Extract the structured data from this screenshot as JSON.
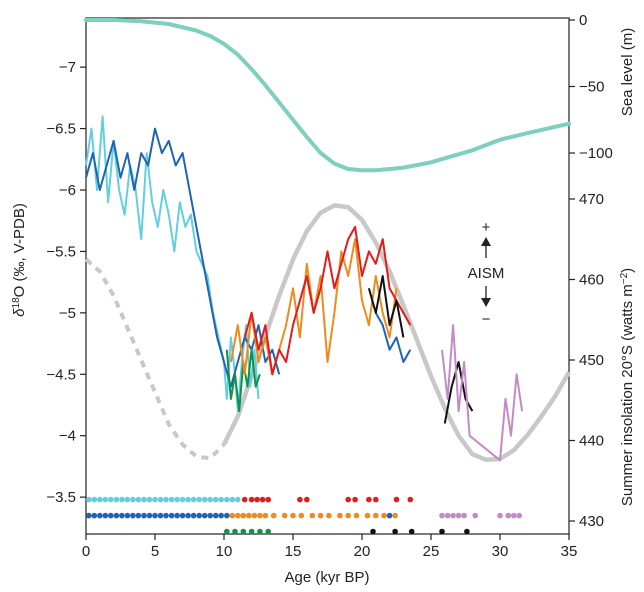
{
  "chart_data": {
    "type": "line",
    "xlabel": "Age (kyr BP)",
    "xlim": [
      0,
      35
    ],
    "x_ticks": [
      0,
      5,
      10,
      15,
      20,
      25,
      30,
      35
    ],
    "y_left": {
      "label_sup": "18",
      "label_rest": "O (‰, V-PDB)",
      "label_delta": "δ",
      "inverted": true,
      "lim": [
        -3.2,
        -7.4
      ],
      "ticks": [
        -7,
        -6.5,
        -6,
        -5.5,
        -5,
        -4.5,
        -4,
        -3.5
      ],
      "tick_labels": [
        "−7",
        "−6.5",
        "−6",
        "−5.5",
        "−5",
        "−4.5",
        "−4",
        "−3.5"
      ]
    },
    "y_right_top": {
      "label": "Sea level (m)",
      "ticks": [
        0,
        -50,
        -100
      ],
      "tick_labels": [
        "0",
        "−50",
        "−100"
      ]
    },
    "y_right_bottom": {
      "label_prefix": "Summer insolation 20°S (watts m",
      "label_sup": "−2",
      "label_suffix": ")",
      "ticks": [
        470,
        460,
        450,
        440,
        430
      ],
      "tick_labels": [
        "470",
        "460",
        "450",
        "440",
        "430"
      ]
    },
    "annotation": {
      "text": "AISM",
      "plus": "+",
      "minus": "−"
    },
    "colors": {
      "cyan": "#62cfe0",
      "blue": "#1f63b5",
      "green": "#119248",
      "orange": "#ef8a1f",
      "red": "#e41b1b",
      "black": "#111111",
      "purple": "#c48ac8",
      "sea_level": "#7dcfbf",
      "insolation": "#c8c8c8"
    },
    "sea_level_series": {
      "x": [
        0,
        2,
        4,
        6,
        8,
        9,
        10,
        11,
        12,
        13,
        14,
        15,
        16,
        17,
        18,
        19,
        20,
        21,
        22,
        23,
        24,
        25,
        26,
        27,
        28,
        29,
        30,
        32,
        35
      ],
      "y": [
        0,
        0,
        -1,
        -3,
        -8,
        -12,
        -18,
        -26,
        -37,
        -49,
        -62,
        -75,
        -88,
        -100,
        -108,
        -112,
        -113,
        -113,
        -112,
        -111,
        -109,
        -107,
        -104,
        -101,
        -98,
        -94,
        -90,
        -85,
        -78
      ]
    },
    "insolation_series": {
      "dashed_until": 10,
      "x": [
        0,
        1,
        2,
        3,
        4,
        5,
        6,
        7,
        8,
        9,
        10,
        11,
        12,
        13,
        14,
        15,
        16,
        17,
        18,
        19,
        20,
        21,
        22,
        23,
        24,
        25,
        26,
        27,
        28,
        29,
        30,
        31,
        32,
        33,
        34,
        35
      ],
      "y": [
        462.5,
        461,
        458,
        454,
        450,
        446,
        442,
        439.5,
        438,
        437.8,
        439.5,
        443,
        448,
        453,
        458,
        462.5,
        466,
        468.3,
        469.2,
        469,
        467.4,
        464.6,
        461,
        456.8,
        452.4,
        448,
        444,
        440.6,
        438.3,
        437.6,
        437.7,
        438.8,
        440.7,
        443,
        445.5,
        448.5
      ]
    },
    "series": [
      {
        "color": "cyan",
        "x": [
          0,
          0.4,
          0.8,
          1.2,
          1.6,
          2,
          2.4,
          2.8,
          3.2,
          3.6,
          4,
          4.4,
          4.8,
          5.2,
          5.6,
          6,
          6.4,
          6.8,
          7.2,
          7.6,
          8,
          8.4,
          8.8,
          9.2,
          9.6,
          10,
          10.2,
          10.5,
          10.8,
          11,
          11.3,
          11.6,
          11.9,
          12.2,
          12.5
        ],
        "y": [
          -6.2,
          -6.5,
          -6.0,
          -6.6,
          -5.9,
          -6.4,
          -6.0,
          -5.8,
          -6.2,
          -6.0,
          -5.6,
          -6.3,
          -5.9,
          -5.7,
          -6.0,
          -5.8,
          -5.5,
          -5.9,
          -5.7,
          -5.8,
          -5.5,
          -5.4,
          -5.3,
          -5.0,
          -4.8,
          -4.6,
          -4.3,
          -4.8,
          -4.5,
          -4.2,
          -4.6,
          -4.9,
          -4.4,
          -4.7,
          -4.3
        ]
      },
      {
        "color": "blue",
        "x": [
          0,
          0.5,
          1,
          1.5,
          2,
          2.5,
          3,
          3.5,
          4,
          4.5,
          5,
          5.5,
          6,
          6.5,
          7,
          7.5,
          8,
          8.5,
          9,
          9.5,
          10,
          10.5,
          11,
          11.5,
          12,
          12.5,
          13,
          13.5,
          14
        ],
        "y": [
          -6.1,
          -6.3,
          -6.0,
          -6.2,
          -6.4,
          -6.1,
          -6.3,
          -6.0,
          -6.3,
          -6.2,
          -6.5,
          -6.3,
          -6.4,
          -6.2,
          -6.3,
          -6.0,
          -5.7,
          -5.4,
          -5.1,
          -4.8,
          -4.6,
          -4.4,
          -4.6,
          -4.8,
          -4.7,
          -4.9,
          -4.6,
          -4.7,
          -4.5
        ]
      },
      {
        "color": "blue",
        "x": [
          21,
          21.5,
          22,
          22.5,
          23,
          23.5
        ],
        "y": [
          -5.0,
          -4.9,
          -4.7,
          -4.8,
          -4.6,
          -4.7
        ]
      },
      {
        "color": "green",
        "x": [
          10.2,
          10.5,
          10.8,
          11.1,
          11.4,
          11.7,
          12.0,
          12.3,
          12.6
        ],
        "y": [
          -4.7,
          -4.3,
          -4.5,
          -4.2,
          -4.6,
          -4.4,
          -4.7,
          -4.4,
          -4.5
        ]
      },
      {
        "color": "orange",
        "x": [
          10.5,
          11,
          11.5,
          12,
          12.5,
          13,
          13.5,
          14,
          14.5,
          15,
          15.5,
          16,
          16.5,
          17,
          17.5,
          18,
          18.5,
          19,
          19.5,
          20,
          20.5,
          21,
          21.5,
          22,
          22.5
        ],
        "y": [
          -4.6,
          -4.9,
          -4.5,
          -5.0,
          -4.6,
          -4.8,
          -4.5,
          -4.7,
          -4.9,
          -5.2,
          -4.8,
          -5.4,
          -5.0,
          -5.3,
          -4.6,
          -5.0,
          -5.5,
          -5.3,
          -5.6,
          -5.1,
          -4.9,
          -5.3,
          -5.0,
          -4.8,
          -5.2
        ]
      },
      {
        "color": "red",
        "x": [
          11.5,
          12,
          12.5,
          13,
          13.5,
          14,
          14.5,
          15,
          15.5,
          16,
          16.5,
          17,
          17.5,
          18,
          18.5,
          19,
          19.5,
          20,
          20.5,
          21,
          21.5,
          22,
          22.5,
          23,
          23.5
        ],
        "y": [
          -4.8,
          -5.0,
          -4.7,
          -4.9,
          -4.5,
          -4.7,
          -4.6,
          -4.9,
          -5.1,
          -5.3,
          -5.0,
          -5.2,
          -5.5,
          -5.2,
          -5.4,
          -5.6,
          -5.7,
          -5.3,
          -5.5,
          -5.4,
          -5.6,
          -5.2,
          -5.1,
          -5.0,
          -4.9
        ]
      },
      {
        "color": "black",
        "x": [
          20.5,
          21,
          21.5,
          22,
          22.5,
          23
        ],
        "y": [
          -5.2,
          -5.0,
          -5.3,
          -4.9,
          -5.1,
          -4.8
        ]
      },
      {
        "color": "black",
        "x": [
          26,
          26.5,
          27,
          27.5,
          28
        ],
        "y": [
          -4.1,
          -4.4,
          -4.6,
          -4.3,
          -4.2
        ]
      },
      {
        "color": "purple",
        "x": [
          25.8,
          26.2,
          26.6,
          27,
          27.4,
          27.8,
          30,
          30.4,
          30.8,
          31.2,
          31.6
        ],
        "y": [
          -4.7,
          -4.3,
          -4.9,
          -4.2,
          -4.6,
          -4.0,
          -3.8,
          -4.3,
          -4.0,
          -4.5,
          -4.2
        ]
      }
    ],
    "date_rows": [
      {
        "color": "cyan",
        "row": -3.48,
        "x": [
          0.2,
          0.6,
          1,
          1.4,
          1.8,
          2.2,
          2.6,
          3,
          3.4,
          3.8,
          4.2,
          4.6,
          5,
          5.4,
          5.8,
          6.2,
          6.6,
          7,
          7.4,
          7.8,
          8.2,
          8.6,
          9,
          9.4,
          9.8,
          10.2,
          10.6,
          11
        ]
      },
      {
        "color": "red",
        "row": -3.48,
        "x": [
          11.5,
          12,
          12.4,
          12.8,
          13.2,
          15.5,
          16,
          19,
          19.5,
          20.5,
          21,
          22.5,
          23.5
        ]
      },
      {
        "color": "blue",
        "row": -3.35,
        "x": [
          0.2,
          0.6,
          1,
          1.4,
          1.8,
          2.2,
          2.6,
          3,
          3.4,
          3.8,
          4.2,
          4.6,
          5,
          5.4,
          5.8,
          6.2,
          6.6,
          7,
          7.4,
          7.8,
          8.2,
          8.6,
          9,
          9.4,
          9.8,
          10.2,
          22
        ]
      },
      {
        "color": "orange",
        "row": -3.35,
        "x": [
          10.6,
          11,
          11.4,
          11.8,
          12.2,
          12.6,
          13,
          13.6,
          14.4,
          15,
          15.6,
          16.4,
          17,
          17.6,
          18.4,
          19,
          19.6,
          20.4,
          21,
          21.6,
          22.4
        ]
      },
      {
        "color": "purple",
        "row": -3.35,
        "x": [
          25.8,
          26.2,
          26.6,
          27,
          27.4,
          28.2,
          30,
          30.6,
          31,
          31.4
        ]
      },
      {
        "color": "green",
        "row": -3.22,
        "x": [
          10.2,
          10.8,
          11.4,
          12,
          12.6,
          13.2
        ]
      },
      {
        "color": "black",
        "row": -3.22,
        "x": [
          20.8,
          22.4,
          23.6,
          25.8,
          27.6
        ]
      }
    ]
  }
}
